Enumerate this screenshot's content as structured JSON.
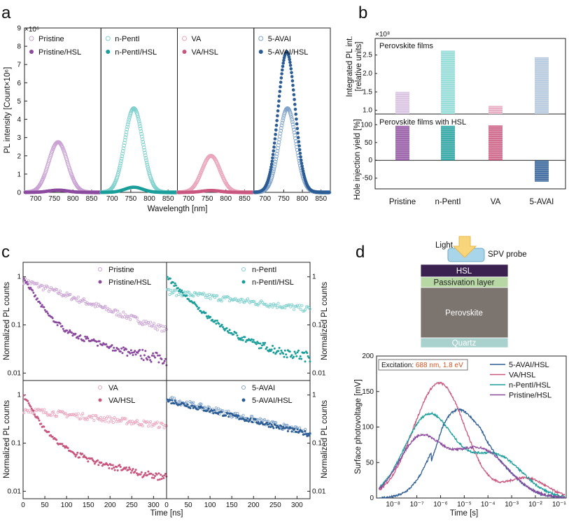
{
  "colors": {
    "pristine": "#8b4a9e",
    "pristine_light": "#c9a2d3",
    "pentl": "#1a9e9a",
    "pentl_light": "#7ed0cd",
    "va": "#c9567e",
    "va_light": "#e9a6bc",
    "avai": "#2c5c94",
    "avai_light": "#7fa2c8"
  },
  "chart_data": [
    {
      "id": "a",
      "type": "scatter",
      "panel_label": "a",
      "title": "",
      "ylabel": "PL intensity [Count×10⁶]",
      "xlabel": "Wavelength [nm]",
      "y_exponent": "×10⁶",
      "ylim": [
        0,
        9
      ],
      "xlim": [
        670,
        875
      ],
      "yticks": [
        "0",
        "1",
        "2",
        "3",
        "4",
        "5",
        "6",
        "7",
        "8",
        "9"
      ],
      "xticks": [
        "700",
        "750",
        "800",
        "850"
      ],
      "subpanels": [
        {
          "legend": [
            "Pristine",
            "Pristine/HSL"
          ],
          "peak": 760,
          "w": 31,
          "amp": 2.75,
          "hsl_amp": 0.12
        },
        {
          "legend": [
            "n-PentI",
            "n-PentI/HSL"
          ],
          "peak": 758,
          "w": 30,
          "amp": 4.6,
          "hsl_amp": 0.28
        },
        {
          "legend": [
            "VA",
            "VA/HSL"
          ],
          "peak": 760,
          "w": 30,
          "amp": 2.0,
          "hsl_amp": 0.1
        },
        {
          "legend": [
            "5-AVAI",
            "5-AVAI/HSL"
          ],
          "peak": 760,
          "w": 28,
          "amp": 4.6,
          "hsl_amp": 7.7
        }
      ]
    },
    {
      "id": "b",
      "type": "bar",
      "panel_label": "b",
      "categories": [
        "Pristine",
        "n-PentI",
        "VA",
        "5-AVAI"
      ],
      "top": {
        "title": "Perovskite films",
        "ylabel_lines": [
          "Integrated PL int.",
          "[relative units]"
        ],
        "y_exponent": "×10⁸",
        "values": [
          1.5,
          2.62,
          1.12,
          2.44
        ],
        "ylim": [
          0.9,
          2.95
        ],
        "yticks": [
          "1.0",
          "1.5",
          "2.0",
          "2.5"
        ]
      },
      "bottom": {
        "title": "Perovskite films with HSL",
        "ylabel": "Hole injection yield [%]",
        "values": [
          97,
          97,
          98,
          -60
        ],
        "ylim": [
          -80,
          130
        ],
        "yticks": [
          "-50",
          "0",
          "50",
          "100"
        ]
      }
    },
    {
      "id": "c",
      "type": "scatter",
      "panel_label": "c",
      "xlabel": "Time [ns]",
      "ylabel": "Normalized PL counts",
      "xlim": [
        0,
        330
      ],
      "ylim_log": [
        0.007,
        2
      ],
      "xticks": [
        "0",
        "50",
        "100",
        "150",
        "200",
        "250",
        "300"
      ],
      "yticks": [
        "0.01",
        "0.1",
        "1"
      ],
      "subpanels": [
        {
          "legend": [
            "Pristine",
            "Pristine/HSL"
          ],
          "film_end": 0.085,
          "hsl_floor": 0.012
        },
        {
          "legend": [
            "n-PentI",
            "n-PentI/HSL"
          ],
          "film_end": 0.24,
          "hsl_floor": 0.014
        },
        {
          "legend": [
            "VA",
            "VA/HSL"
          ],
          "film_end": 0.26,
          "hsl_floor": 0.011
        },
        {
          "legend": [
            "5-AVAI",
            "5-AVAI/HSL"
          ],
          "film_end": 0.17,
          "hsl_end": 0.16
        }
      ]
    },
    {
      "id": "d",
      "type": "line",
      "panel_label": "d",
      "xlabel": "Time [s]",
      "ylabel": "Surface photovoltage [mV]",
      "ylim": [
        0,
        200
      ],
      "xlim_log10": [
        -8.7,
        -0.7
      ],
      "yticks": [
        "0",
        "50",
        "100",
        "150",
        "200"
      ],
      "xticks": [
        "10⁻⁸",
        "10⁻⁷",
        "10⁻⁶",
        "10⁻⁵",
        "10⁻⁴",
        "10⁻³",
        "10⁻²",
        "10⁻¹"
      ],
      "annotation_label": "Excitation:",
      "annotation_value": "688 nm, 1.8 eV",
      "series": [
        {
          "name": "5-AVAI/HSL",
          "peak_mV": 113,
          "peak_time_s": 4e-06
        },
        {
          "name": "VA/HSL",
          "peak_mV": 162,
          "peak_time_s": 1e-06
        },
        {
          "name": "n-PentI/HSL",
          "peak_mV": 117,
          "peak_time_s": 3e-07
        },
        {
          "name": "Pristine/HSL",
          "peak_mV": 85,
          "peak_time_s": 2e-07
        }
      ],
      "schematic": {
        "light": "Light",
        "probe": "SPV probe",
        "layers": [
          "HSL",
          "Passivation layer",
          "Perovskite",
          "Quartz"
        ]
      }
    }
  ]
}
